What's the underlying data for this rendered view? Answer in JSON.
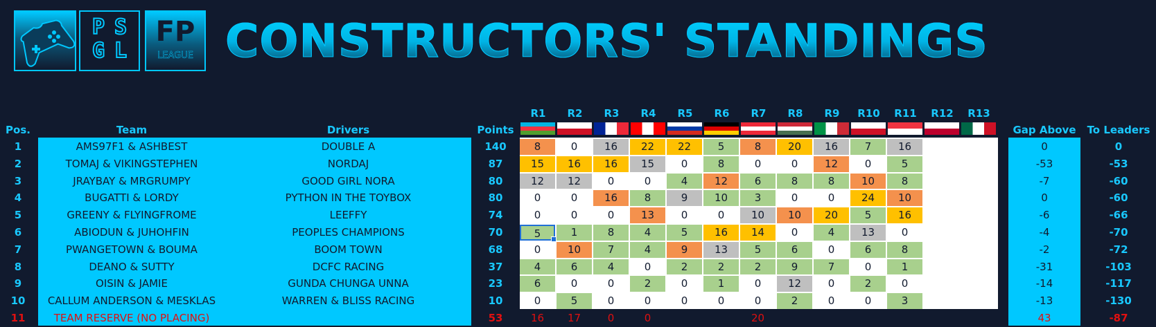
{
  "header": {
    "title": "CONSTRUCTORS' STANDINGS",
    "logo_psgl": "PSGL",
    "logo_fp": "FP",
    "logo_fp_sub": "LEAGUE"
  },
  "columns": {
    "pos": "Pos.",
    "team": "Team",
    "drivers": "Drivers",
    "points": "Points",
    "gap_above": "Gap Above",
    "to_leaders": "To Leaders"
  },
  "rounds": [
    "R1",
    "R2",
    "R3",
    "R4",
    "R5",
    "R6",
    "R7",
    "R8",
    "R9",
    "R10",
    "R11",
    "R12",
    "R13"
  ],
  "flags": [
    {
      "name": "azerbaijan-flag-icon",
      "colors": [
        "#00b5e2",
        "#ef3340",
        "#509e2f"
      ]
    },
    {
      "name": "bahrain-flag-icon",
      "colors": [
        "#ffffff",
        "#ce1126"
      ]
    },
    {
      "name": "france-flag-icon",
      "colors": [
        "#002395",
        "#ffffff",
        "#ed2939"
      ]
    },
    {
      "name": "canada-flag-icon",
      "colors": [
        "#ff0000",
        "#ffffff",
        "#ff0000"
      ]
    },
    {
      "name": "russia-flag-icon",
      "colors": [
        "#ffffff",
        "#0039a6",
        "#d52b1e"
      ]
    },
    {
      "name": "germany-flag-icon",
      "colors": [
        "#000000",
        "#dd0000",
        "#ffce00"
      ]
    },
    {
      "name": "austria-flag-icon",
      "colors": [
        "#ed2939",
        "#ffffff",
        "#ed2939"
      ]
    },
    {
      "name": "hungary-flag-icon",
      "colors": [
        "#ce2939",
        "#ffffff",
        "#477050"
      ]
    },
    {
      "name": "italy-flag-icon",
      "colors": [
        "#009246",
        "#ffffff",
        "#ce2b37"
      ]
    },
    {
      "name": "bahrain-flag-icon",
      "colors": [
        "#ffffff",
        "#ce1126"
      ]
    },
    {
      "name": "singapore-flag-icon",
      "colors": [
        "#ef3340",
        "#ffffff"
      ]
    },
    {
      "name": "japan-flag-icon",
      "colors": [
        "#ffffff",
        "#bc002d"
      ]
    },
    {
      "name": "mexico-flag-icon",
      "colors": [
        "#006847",
        "#ffffff",
        "#ce1126"
      ]
    }
  ],
  "colors": {
    "green": "#a8d08d",
    "gold": "#ffc000",
    "orange": "#f4914d",
    "grey": "#bfbfbf",
    "white": "#ffffff",
    "none": "#111a2e"
  },
  "rows": [
    {
      "pos": "1",
      "team": "AMS97F1 & ASHBEST",
      "drivers": "DOUBLE A",
      "points": "140",
      "gap": "0",
      "leaders": "0",
      "results": [
        {
          "v": "8",
          "c": "orange"
        },
        {
          "v": "0",
          "c": "white"
        },
        {
          "v": "16",
          "c": "grey"
        },
        {
          "v": "22",
          "c": "gold"
        },
        {
          "v": "22",
          "c": "gold"
        },
        {
          "v": "5",
          "c": "green"
        },
        {
          "v": "8",
          "c": "orange"
        },
        {
          "v": "20",
          "c": "gold"
        },
        {
          "v": "16",
          "c": "grey"
        },
        {
          "v": "7",
          "c": "green"
        },
        {
          "v": "16",
          "c": "grey"
        },
        {
          "v": "",
          "c": "white"
        },
        {
          "v": "",
          "c": "white"
        }
      ]
    },
    {
      "pos": "2",
      "team": "TOMAJ & VIKINGSTEPHEN",
      "drivers": "NORDAJ",
      "points": "87",
      "gap": "-53",
      "leaders": "-53",
      "results": [
        {
          "v": "15",
          "c": "gold"
        },
        {
          "v": "16",
          "c": "gold"
        },
        {
          "v": "16",
          "c": "gold"
        },
        {
          "v": "15",
          "c": "grey"
        },
        {
          "v": "0",
          "c": "white"
        },
        {
          "v": "8",
          "c": "green"
        },
        {
          "v": "0",
          "c": "white"
        },
        {
          "v": "0",
          "c": "white"
        },
        {
          "v": "12",
          "c": "orange"
        },
        {
          "v": "0",
          "c": "white"
        },
        {
          "v": "5",
          "c": "green"
        },
        {
          "v": "",
          "c": "white"
        },
        {
          "v": "",
          "c": "white"
        }
      ]
    },
    {
      "pos": "3",
      "team": "JRAYBAY & MRGRUMPY",
      "drivers": "GOOD GIRL NORA",
      "points": "80",
      "gap": "-7",
      "leaders": "-60",
      "results": [
        {
          "v": "12",
          "c": "grey"
        },
        {
          "v": "12",
          "c": "grey"
        },
        {
          "v": "0",
          "c": "white"
        },
        {
          "v": "0",
          "c": "white"
        },
        {
          "v": "4",
          "c": "green"
        },
        {
          "v": "12",
          "c": "orange"
        },
        {
          "v": "6",
          "c": "green"
        },
        {
          "v": "8",
          "c": "green"
        },
        {
          "v": "8",
          "c": "green"
        },
        {
          "v": "10",
          "c": "orange"
        },
        {
          "v": "8",
          "c": "green"
        },
        {
          "v": "",
          "c": "white"
        },
        {
          "v": "",
          "c": "white"
        }
      ]
    },
    {
      "pos": "4",
      "team": "BUGATTI & LORDY",
      "drivers": "PYTHON IN THE TOYBOX",
      "points": "80",
      "gap": "0",
      "leaders": "-60",
      "results": [
        {
          "v": "0",
          "c": "white"
        },
        {
          "v": "0",
          "c": "white"
        },
        {
          "v": "16",
          "c": "orange"
        },
        {
          "v": "8",
          "c": "green"
        },
        {
          "v": "9",
          "c": "grey"
        },
        {
          "v": "10",
          "c": "green"
        },
        {
          "v": "3",
          "c": "green"
        },
        {
          "v": "0",
          "c": "white"
        },
        {
          "v": "0",
          "c": "white"
        },
        {
          "v": "24",
          "c": "gold"
        },
        {
          "v": "10",
          "c": "orange"
        },
        {
          "v": "",
          "c": "white"
        },
        {
          "v": "",
          "c": "white"
        }
      ]
    },
    {
      "pos": "5",
      "team": "GREENY & FLYINGFROME",
      "drivers": "LEEFFY",
      "points": "74",
      "gap": "-6",
      "leaders": "-66",
      "results": [
        {
          "v": "0",
          "c": "white"
        },
        {
          "v": "0",
          "c": "white"
        },
        {
          "v": "0",
          "c": "white"
        },
        {
          "v": "13",
          "c": "orange"
        },
        {
          "v": "0",
          "c": "white"
        },
        {
          "v": "0",
          "c": "white"
        },
        {
          "v": "10",
          "c": "grey"
        },
        {
          "v": "10",
          "c": "orange"
        },
        {
          "v": "20",
          "c": "gold"
        },
        {
          "v": "5",
          "c": "green"
        },
        {
          "v": "16",
          "c": "gold"
        },
        {
          "v": "",
          "c": "white"
        },
        {
          "v": "",
          "c": "white"
        }
      ]
    },
    {
      "pos": "6",
      "team": "ABIODUN & JUHOHFIN",
      "drivers": "PEOPLES CHAMPIONS",
      "points": "70",
      "gap": "-4",
      "leaders": "-70",
      "results": [
        {
          "v": "5",
          "c": "green",
          "sel": true
        },
        {
          "v": "1",
          "c": "green"
        },
        {
          "v": "8",
          "c": "green"
        },
        {
          "v": "4",
          "c": "green"
        },
        {
          "v": "5",
          "c": "green"
        },
        {
          "v": "16",
          "c": "gold"
        },
        {
          "v": "14",
          "c": "gold"
        },
        {
          "v": "0",
          "c": "white"
        },
        {
          "v": "4",
          "c": "green"
        },
        {
          "v": "13",
          "c": "grey"
        },
        {
          "v": "0",
          "c": "white"
        },
        {
          "v": "",
          "c": "white"
        },
        {
          "v": "",
          "c": "white"
        }
      ]
    },
    {
      "pos": "7",
      "team": "PWANGETOWN & BOUMA",
      "drivers": "BOOM TOWN",
      "points": "68",
      "gap": "-2",
      "leaders": "-72",
      "results": [
        {
          "v": "0",
          "c": "white"
        },
        {
          "v": "10",
          "c": "orange"
        },
        {
          "v": "7",
          "c": "green"
        },
        {
          "v": "4",
          "c": "green"
        },
        {
          "v": "9",
          "c": "orange"
        },
        {
          "v": "13",
          "c": "grey"
        },
        {
          "v": "5",
          "c": "green"
        },
        {
          "v": "6",
          "c": "green"
        },
        {
          "v": "0",
          "c": "white"
        },
        {
          "v": "6",
          "c": "green"
        },
        {
          "v": "8",
          "c": "green"
        },
        {
          "v": "",
          "c": "white"
        },
        {
          "v": "",
          "c": "white"
        }
      ]
    },
    {
      "pos": "8",
      "team": "DEANO & SUTTY",
      "drivers": "DCFC RACING",
      "points": "37",
      "gap": "-31",
      "leaders": "-103",
      "results": [
        {
          "v": "4",
          "c": "green"
        },
        {
          "v": "6",
          "c": "green"
        },
        {
          "v": "4",
          "c": "green"
        },
        {
          "v": "0",
          "c": "white"
        },
        {
          "v": "2",
          "c": "green"
        },
        {
          "v": "2",
          "c": "green"
        },
        {
          "v": "2",
          "c": "green"
        },
        {
          "v": "9",
          "c": "green"
        },
        {
          "v": "7",
          "c": "green"
        },
        {
          "v": "0",
          "c": "white"
        },
        {
          "v": "1",
          "c": "green"
        },
        {
          "v": "",
          "c": "white"
        },
        {
          "v": "",
          "c": "white"
        }
      ]
    },
    {
      "pos": "9",
      "team": "OISIN & JAMIE",
      "drivers": "GUNDA CHUNGA UNNA",
      "points": "23",
      "gap": "-14",
      "leaders": "-117",
      "results": [
        {
          "v": "6",
          "c": "green"
        },
        {
          "v": "0",
          "c": "white"
        },
        {
          "v": "0",
          "c": "white"
        },
        {
          "v": "2",
          "c": "green"
        },
        {
          "v": "0",
          "c": "white"
        },
        {
          "v": "1",
          "c": "green"
        },
        {
          "v": "0",
          "c": "white"
        },
        {
          "v": "12",
          "c": "grey"
        },
        {
          "v": "0",
          "c": "white"
        },
        {
          "v": "2",
          "c": "green"
        },
        {
          "v": "0",
          "c": "white"
        },
        {
          "v": "",
          "c": "white"
        },
        {
          "v": "",
          "c": "white"
        }
      ]
    },
    {
      "pos": "10",
      "team": "CALLUM ANDERSON & MESKLAS",
      "drivers": "WARREN & BLISS RACING",
      "points": "10",
      "gap": "-13",
      "leaders": "-130",
      "results": [
        {
          "v": "0",
          "c": "white"
        },
        {
          "v": "5",
          "c": "green"
        },
        {
          "v": "0",
          "c": "white"
        },
        {
          "v": "0",
          "c": "white"
        },
        {
          "v": "0",
          "c": "white"
        },
        {
          "v": "0",
          "c": "white"
        },
        {
          "v": "0",
          "c": "white"
        },
        {
          "v": "2",
          "c": "green"
        },
        {
          "v": "0",
          "c": "white"
        },
        {
          "v": "0",
          "c": "white"
        },
        {
          "v": "3",
          "c": "green"
        },
        {
          "v": "",
          "c": "white"
        },
        {
          "v": "",
          "c": "white"
        }
      ]
    },
    {
      "pos": "11",
      "team": "TEAM RESERVE (NO PLACING)",
      "drivers": "",
      "points": "53",
      "gap": "43",
      "leaders": "-87",
      "reserve": true,
      "results": [
        {
          "v": "16",
          "c": "none"
        },
        {
          "v": "17",
          "c": "none"
        },
        {
          "v": "0",
          "c": "none"
        },
        {
          "v": "0",
          "c": "none"
        },
        {
          "v": "",
          "c": "none"
        },
        {
          "v": "",
          "c": "none"
        },
        {
          "v": "20",
          "c": "none"
        },
        {
          "v": "",
          "c": "none"
        },
        {
          "v": "",
          "c": "none"
        },
        {
          "v": "",
          "c": "none"
        },
        {
          "v": "",
          "c": "none"
        },
        {
          "v": "",
          "c": "none"
        },
        {
          "v": "",
          "c": "none"
        }
      ]
    }
  ]
}
